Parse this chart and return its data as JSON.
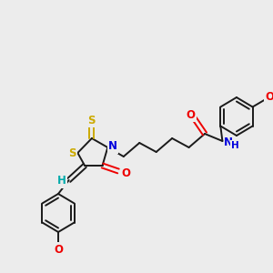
{
  "bg_color": "#ececec",
  "bond_color": "#1a1a1a",
  "atom_colors": {
    "S": "#ccaa00",
    "N": "#0000dd",
    "O": "#ee0000",
    "H_label": "#00aaaa",
    "C": "#1a1a1a"
  }
}
